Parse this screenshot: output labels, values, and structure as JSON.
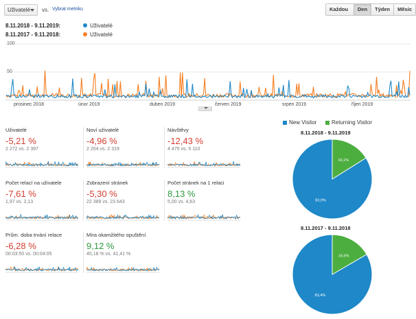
{
  "toolbar": {
    "metric_value": "Uživatelé",
    "vs_label": "vs.",
    "pick_metric": "Vybrat metriku",
    "granularity": [
      "Každou hodinu",
      "Den",
      "Týden",
      "Měsíc"
    ],
    "active_granularity": "Den"
  },
  "legend": {
    "current_range": "8.11.2018 - 9.11.2019:",
    "previous_range": "8.11.2017 - 9.11.2018:",
    "current_label": "Uživatelé",
    "previous_label": "Uživatelé"
  },
  "colors": {
    "current": "#1e88c8",
    "previous": "#f57d1f",
    "new_visitor": "#1e88c8",
    "returning_visitor": "#4cae3f",
    "negative": "#d23f31",
    "positive": "#2e9a3e"
  },
  "chart_data": {
    "type": "line",
    "y_ticks": [
      "100",
      "50"
    ],
    "x_ticks": [
      "prosinec 2018",
      "únor 2019",
      "duben 2019",
      "červen 2019",
      "srpen 2019",
      "říjen 2019"
    ],
    "ylim": [
      0,
      100
    ]
  },
  "metrics": [
    {
      "name": "Uživatelé",
      "change": "-5,21 %",
      "compare": "2 272 vs. 2 397",
      "trend": "neg"
    },
    {
      "name": "Noví uživatelé",
      "change": "-4,96 %",
      "compare": "2 204 vs. 2 319",
      "trend": "neg"
    },
    {
      "name": "Návštěvy",
      "change": "-12,43 %",
      "compare": "4 475 vs. 5 110",
      "trend": "neg"
    },
    {
      "name": "Počet relací na uživatele",
      "change": "-7,61 %",
      "compare": "1,97 vs. 2,13",
      "trend": "neg"
    },
    {
      "name": "Zobrazení stránek",
      "change": "-5,30 %",
      "compare": "22 389 vs. 23 643",
      "trend": "neg"
    },
    {
      "name": "Počet stránek na 1 relaci",
      "change": "8,13 %",
      "compare": "5,00 vs. 4,63",
      "trend": "pos"
    },
    {
      "name": "Prům. doba trvání relace",
      "change": "-6,28 %",
      "compare": "00:03:50 vs. 00:04:05",
      "trend": "neg"
    },
    {
      "name": "Míra okamžitého opuštění",
      "change": "9,12 %",
      "compare": "45,18 % vs. 41,41 %",
      "trend": "pos"
    }
  ],
  "pies": {
    "legend_new": "New Visitor",
    "legend_returning": "Returning Visitor",
    "charts": [
      {
        "title": "8.11.2018 - 9.11.2019",
        "new_pct": 83.9,
        "returning_pct": 16.1,
        "new_label": "83,9%",
        "returning_label": "16,1%"
      },
      {
        "title": "8.11.2017 - 9.11.2018",
        "new_pct": 83.4,
        "returning_pct": 16.6,
        "new_label": "83,4%",
        "returning_label": "16,6%"
      }
    ]
  }
}
